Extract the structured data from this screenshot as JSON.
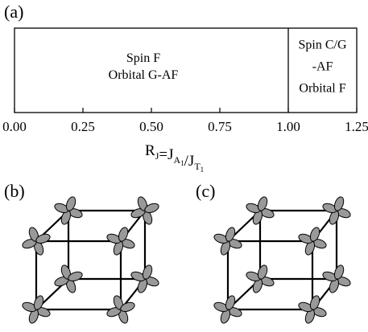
{
  "chart_data": {
    "type": "phase",
    "panel_labels": [
      "(a)",
      "(b)",
      "(c)"
    ],
    "xlim": [
      0,
      1.25
    ],
    "xticks": [
      {
        "value": 0,
        "label": "0.00"
      },
      {
        "value": 0.25,
        "label": "0.25"
      },
      {
        "value": 0.5,
        "label": "0.50"
      },
      {
        "value": 0.75,
        "label": "0.75"
      },
      {
        "value": 1.0,
        "label": "1.00"
      },
      {
        "value": 1.25,
        "label": "1.25"
      }
    ],
    "boundaries": [
      1.0
    ],
    "regions": [
      {
        "lines": [
          "Spin F",
          "Orbital G-AF"
        ]
      },
      {
        "lines": [
          "Spin C/G",
          "-AF",
          "Orbital F"
        ]
      }
    ],
    "xlabel": [
      {
        "text": "R",
        "sub": "J"
      },
      {
        "text": "=J",
        "sub": "A",
        "subsub": "1"
      },
      {
        "text": "/J",
        "sub": "T",
        "subsub": "1"
      }
    ]
  }
}
